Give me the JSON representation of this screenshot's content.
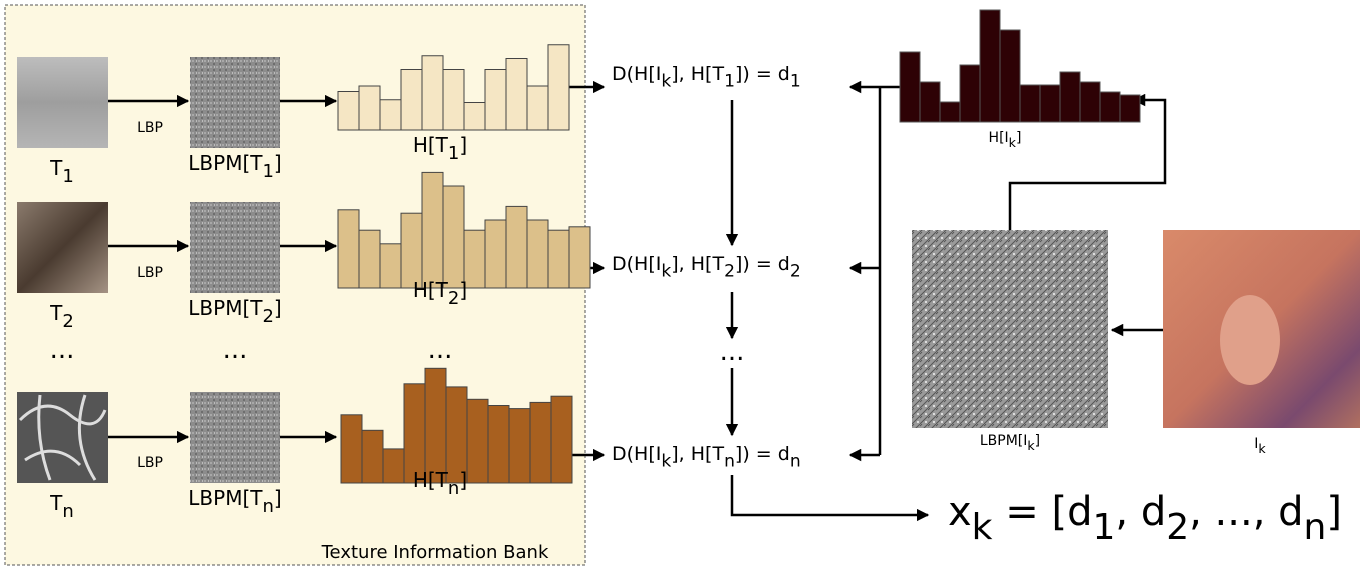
{
  "bank": {
    "title": "Texture Information Bank",
    "ellipsis": "...",
    "rows": [
      {
        "texture": [
          "T",
          "1"
        ],
        "lbp": "LBP",
        "lbpm": [
          "LBPM[T",
          "1",
          "]"
        ],
        "hist": [
          "H[T",
          "1",
          "]"
        ],
        "distance": [
          "D(H[I",
          "k",
          "], H[T",
          "1",
          "]) = d",
          "1"
        ]
      },
      {
        "texture": [
          "T",
          "2"
        ],
        "lbp": "LBP",
        "lbpm": [
          "LBPM[T",
          "2",
          "]"
        ],
        "hist": [
          "H[T",
          "2",
          "]"
        ],
        "distance": [
          "D(H[I",
          "k",
          "], H[T",
          "2",
          "]) = d",
          "2"
        ]
      },
      {
        "texture": [
          "T",
          "n"
        ],
        "lbp": "LBP",
        "lbpm": [
          "LBPM[T",
          "n",
          "]"
        ],
        "hist": [
          "H[T",
          "n",
          "]"
        ],
        "distance": [
          "D(H[I",
          "k",
          "], H[T",
          "n",
          "]) = d",
          "n"
        ]
      }
    ]
  },
  "query": {
    "hist": [
      "H[I",
      "k",
      "]"
    ],
    "lbpm": [
      "LBPM[I",
      "k",
      "]"
    ],
    "image": [
      "I",
      "k"
    ]
  },
  "feature": [
    "x",
    "k",
    " = [d",
    "1",
    ", d",
    "2",
    ", ..., d",
    "n",
    "]"
  ]
}
